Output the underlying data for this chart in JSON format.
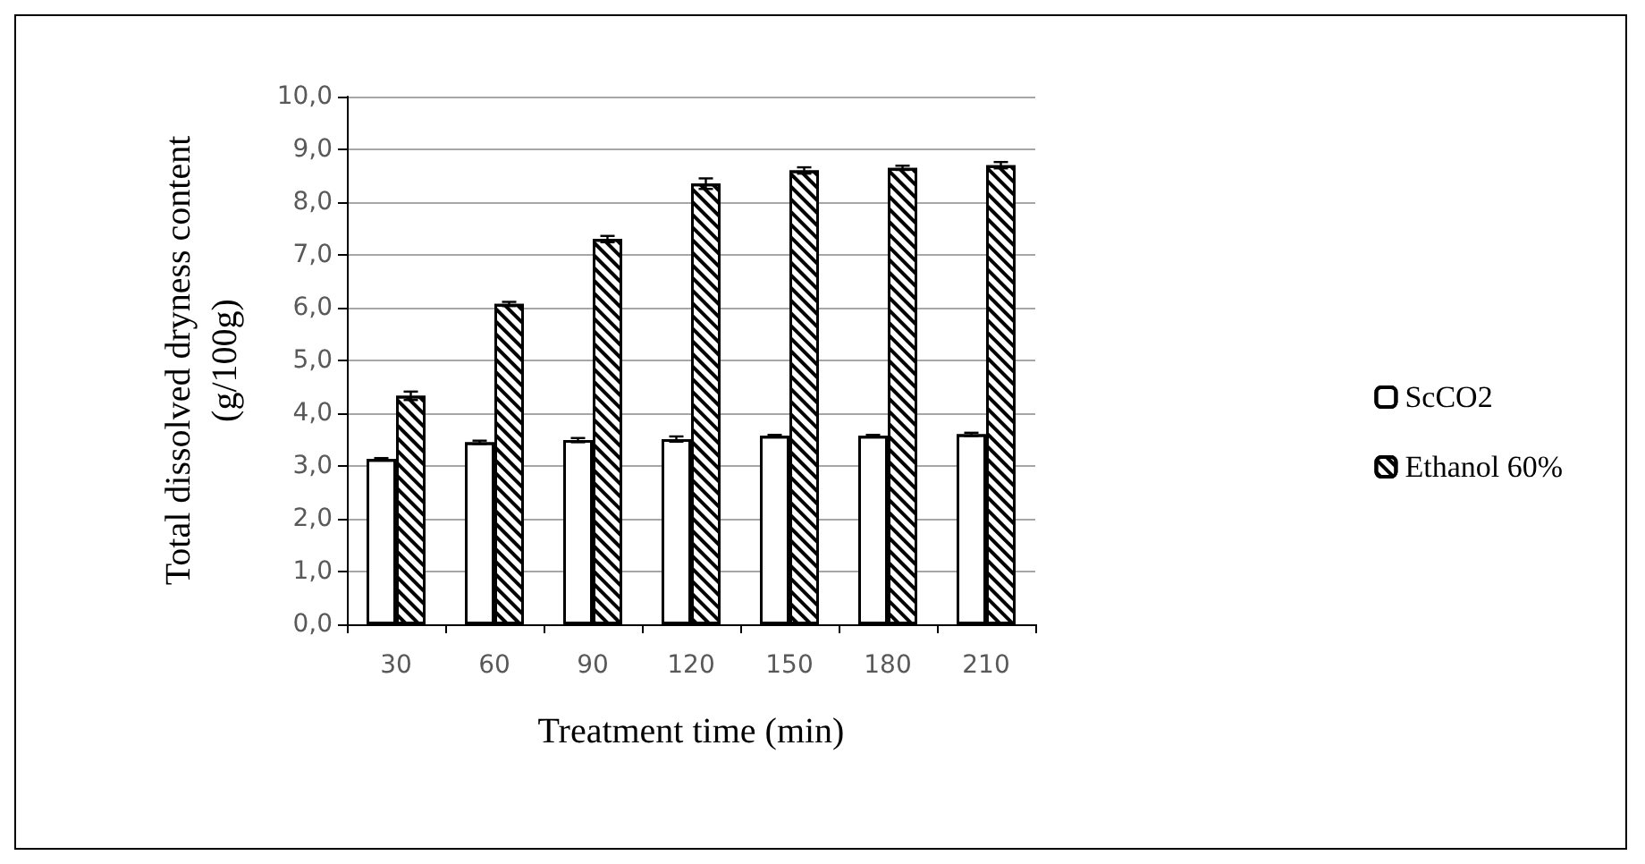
{
  "chart_data": {
    "type": "bar",
    "xlabel": "Treatment time (min)",
    "ylabel": "Total dissolved dryness content\n(g/100g)",
    "categories": [
      "30",
      "60",
      "90",
      "120",
      "150",
      "180",
      "210"
    ],
    "series": [
      {
        "name": "ScCO2",
        "color": "#ffffff",
        "values": [
          3.13,
          3.45,
          3.49,
          3.51,
          3.57,
          3.57,
          3.6
        ],
        "errors": [
          0.02,
          0.03,
          0.04,
          0.05,
          0.02,
          0.02,
          0.03
        ]
      },
      {
        "name": "Ethanol 60%",
        "color": "#ffffff",
        "values": [
          4.33,
          6.07,
          7.3,
          8.35,
          8.6,
          8.65,
          8.7
        ],
        "errors": [
          0.08,
          0.04,
          0.06,
          0.1,
          0.06,
          0.04,
          0.06
        ]
      }
    ],
    "ylim": [
      0,
      10
    ],
    "yticks": [
      {
        "value": 0,
        "label": "0,0"
      },
      {
        "value": 1,
        "label": "1,0"
      },
      {
        "value": 2,
        "label": "2,0"
      },
      {
        "value": 3,
        "label": "3,0"
      },
      {
        "value": 4,
        "label": "4,0"
      },
      {
        "value": 5,
        "label": "5,0"
      },
      {
        "value": 6,
        "label": "6,0"
      },
      {
        "value": 7,
        "label": "7,0"
      },
      {
        "value": 8,
        "label": "8,0"
      },
      {
        "value": 9,
        "label": "9,0"
      },
      {
        "value": 10,
        "label": "10,0"
      }
    ],
    "grid": "y",
    "legend": "right"
  }
}
